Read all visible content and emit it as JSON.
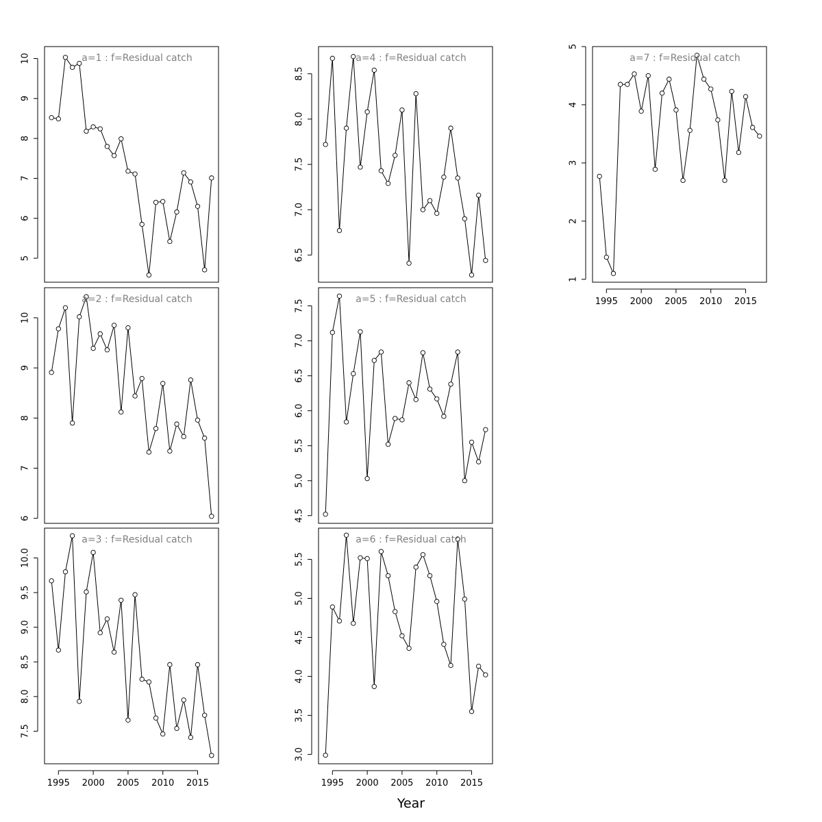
{
  "figure": {
    "xlabel": "Year"
  },
  "chart_data": [
    {
      "type": "line",
      "title": "a=1  :  f=Residual catch",
      "x": [
        1994,
        1995,
        1996,
        1997,
        1998,
        1999,
        2000,
        2001,
        2002,
        2003,
        2004,
        2005,
        2006,
        2007,
        2008,
        2009,
        2010,
        2011,
        2012,
        2013,
        2014,
        2015,
        2016,
        2017
      ],
      "values": [
        8.52,
        8.49,
        10.03,
        9.78,
        9.88,
        8.18,
        8.29,
        8.24,
        7.8,
        7.57,
        7.99,
        7.18,
        7.11,
        5.85,
        4.58,
        6.4,
        6.42,
        5.42,
        6.16,
        7.14,
        6.91,
        6.3,
        4.71,
        7.01
      ],
      "yticks": [
        5,
        6,
        7,
        8,
        9,
        10
      ],
      "ylim": [
        4.4,
        10.3
      ],
      "xticks": [],
      "show_xticks": false,
      "grid": false
    },
    {
      "type": "line",
      "title": "a=2  :  f=Residual catch",
      "x": [
        1994,
        1995,
        1996,
        1997,
        1998,
        1999,
        2000,
        2001,
        2002,
        2003,
        2004,
        2005,
        2006,
        2007,
        2008,
        2009,
        2010,
        2011,
        2012,
        2013,
        2014,
        2015,
        2016,
        2017
      ],
      "values": [
        8.91,
        9.78,
        10.2,
        7.9,
        10.02,
        10.42,
        9.39,
        9.68,
        9.36,
        9.85,
        8.12,
        9.8,
        8.44,
        8.79,
        7.32,
        7.79,
        8.69,
        7.34,
        7.88,
        7.63,
        8.76,
        7.96,
        7.6,
        6.04
      ],
      "yticks": [
        6,
        7,
        8,
        9,
        10
      ],
      "ylim": [
        5.9,
        10.6
      ],
      "xticks": [],
      "show_xticks": false,
      "grid": false
    },
    {
      "type": "line",
      "title": "a=3  :  f=Residual catch",
      "x": [
        1994,
        1995,
        1996,
        1997,
        1998,
        1999,
        2000,
        2001,
        2002,
        2003,
        2004,
        2005,
        2006,
        2007,
        2008,
        2009,
        2010,
        2011,
        2012,
        2013,
        2014,
        2015,
        2016,
        2017
      ],
      "values": [
        9.67,
        8.67,
        9.8,
        10.32,
        7.93,
        9.51,
        10.08,
        8.92,
        9.12,
        8.64,
        9.39,
        7.66,
        9.47,
        8.25,
        8.21,
        7.69,
        7.46,
        8.46,
        7.54,
        7.95,
        7.41,
        8.46,
        7.73,
        7.15
      ],
      "yticks": [
        7.5,
        8.0,
        8.5,
        9.0,
        9.5,
        10.0
      ],
      "ylim": [
        7.03,
        10.43
      ],
      "xticks": [
        1995,
        2000,
        2005,
        2010,
        2015
      ],
      "show_xticks": true,
      "grid": false
    },
    {
      "type": "line",
      "title": "a=4  :  f=Residual catch",
      "x": [
        1994,
        1995,
        1996,
        1997,
        1998,
        1999,
        2000,
        2001,
        2002,
        2003,
        2004,
        2005,
        2006,
        2007,
        2008,
        2009,
        2010,
        2011,
        2012,
        2013,
        2014,
        2015,
        2016,
        2017
      ],
      "values": [
        7.72,
        8.67,
        6.77,
        7.9,
        8.69,
        7.47,
        8.08,
        8.54,
        7.43,
        7.29,
        7.6,
        8.1,
        6.41,
        8.28,
        7.0,
        7.1,
        6.96,
        7.36,
        7.9,
        7.35,
        6.9,
        6.28,
        7.16,
        6.44
      ],
      "yticks": [
        6.5,
        7.0,
        7.5,
        8.0,
        8.5
      ],
      "ylim": [
        6.2,
        8.8
      ],
      "xticks": [],
      "show_xticks": false,
      "grid": false
    },
    {
      "type": "line",
      "title": "a=5  :  f=Residual catch",
      "x": [
        1994,
        1995,
        1996,
        1997,
        1998,
        1999,
        2000,
        2001,
        2002,
        2003,
        2004,
        2005,
        2006,
        2007,
        2008,
        2009,
        2010,
        2011,
        2012,
        2013,
        2014,
        2015,
        2016,
        2017
      ],
      "values": [
        4.52,
        7.12,
        7.64,
        5.84,
        6.53,
        7.13,
        5.03,
        6.72,
        6.84,
        5.52,
        5.89,
        5.87,
        6.4,
        6.16,
        6.83,
        6.31,
        6.17,
        5.92,
        6.38,
        6.84,
        5.0,
        5.55,
        5.27,
        5.73
      ],
      "yticks": [
        4.5,
        5.0,
        5.5,
        6.0,
        6.5,
        7.0,
        7.5
      ],
      "ylim": [
        4.39,
        7.76
      ],
      "xticks": [],
      "show_xticks": false,
      "grid": false
    },
    {
      "type": "line",
      "title": "a=6  :  f=Residual catch",
      "x": [
        1994,
        1995,
        1996,
        1997,
        1998,
        1999,
        2000,
        2001,
        2002,
        2003,
        2004,
        2005,
        2006,
        2007,
        2008,
        2009,
        2010,
        2011,
        2012,
        2013,
        2014,
        2015,
        2016,
        2017
      ],
      "values": [
        2.99,
        4.89,
        4.71,
        5.81,
        4.68,
        5.52,
        5.51,
        3.87,
        5.6,
        5.29,
        4.83,
        4.52,
        4.36,
        5.4,
        5.56,
        5.29,
        4.96,
        4.41,
        4.14,
        5.76,
        4.99,
        3.55,
        4.13,
        4.02
      ],
      "yticks": [
        3.0,
        3.5,
        4.0,
        4.5,
        5.0,
        5.5
      ],
      "ylim": [
        2.88,
        5.9
      ],
      "xticks": [
        1995,
        2000,
        2005,
        2010,
        2015
      ],
      "show_xticks": true,
      "grid": false
    },
    {
      "type": "line",
      "title": "a=7  :  f=Residual catch",
      "x": [
        1994,
        1995,
        1996,
        1997,
        1998,
        1999,
        2000,
        2001,
        2002,
        2003,
        2004,
        2005,
        2006,
        2007,
        2008,
        2009,
        2010,
        2011,
        2012,
        2013,
        2014,
        2015,
        2016,
        2017
      ],
      "values": [
        2.77,
        1.38,
        1.1,
        4.35,
        4.35,
        4.53,
        3.89,
        4.5,
        2.89,
        4.2,
        4.44,
        3.91,
        2.7,
        3.56,
        4.85,
        4.44,
        4.27,
        3.74,
        2.7,
        4.23,
        3.18,
        4.14,
        3.61,
        3.46
      ],
      "yticks": [
        1,
        2,
        3,
        4,
        5
      ],
      "ylim": [
        0.95,
        5.0
      ],
      "xticks": [
        1995,
        2000,
        2005,
        2010,
        2015
      ],
      "show_xticks": true,
      "grid": false
    }
  ]
}
